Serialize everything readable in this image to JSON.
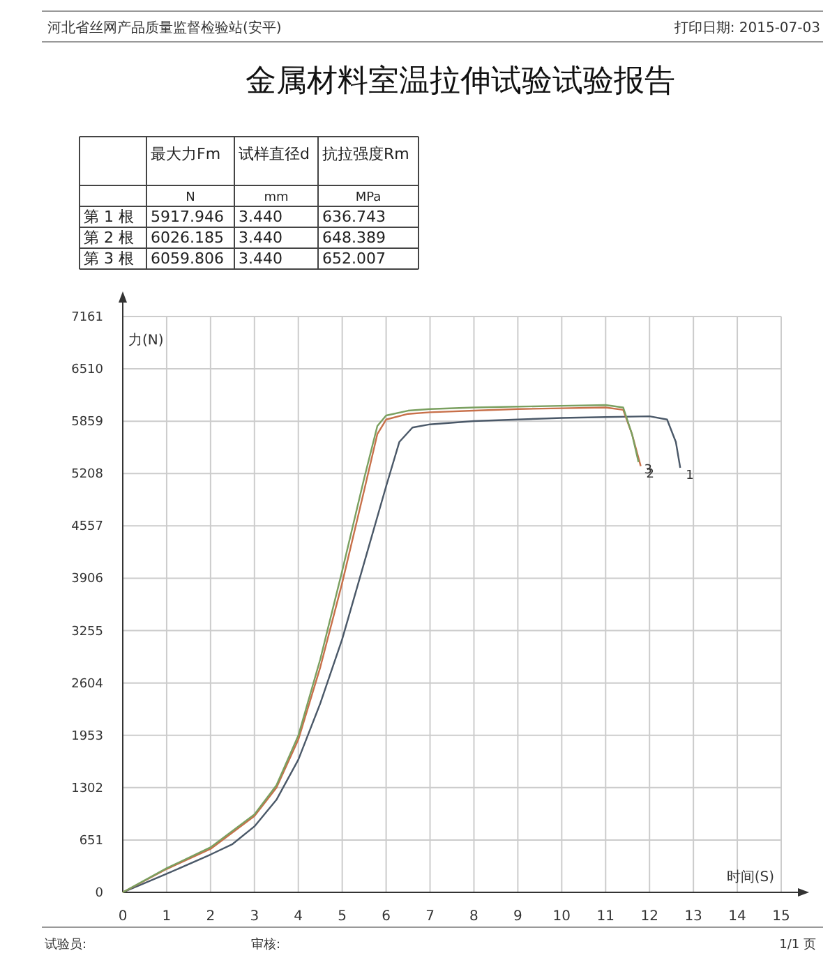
{
  "chart_data": [
    {
      "type": "other",
      "annotations": [
        "河北省丝网产品质量监督检验站(安平)",
        "打印日期: 2015-07-03",
        "最大力Fm",
        "试样直径d",
        "抗拉强度Rm",
        "N",
        "mm",
        "MPa",
        "第 1 根",
        "5917.946",
        "3.440",
        "636.743",
        "第 2 根",
        "6026.185",
        "3.440",
        "648.389",
        "第 3 根",
        "6059.806",
        "3.440",
        "652.007",
        "试验员:",
        "审核:",
        "1/1 页"
      ]
    },
    {
      "type": "line",
      "title": "金属材料室温拉伸试验试验报告",
      "xlabel": "时间(S)",
      "ylabel": "力(N)",
      "xlim": [
        0,
        15
      ],
      "ylim": [
        0,
        7161
      ],
      "xticks": [
        0,
        1,
        2,
        3,
        4,
        5,
        6,
        7,
        8,
        9,
        10,
        11,
        12,
        13,
        14,
        15
      ],
      "yticks": [
        0,
        651,
        1302,
        1953,
        2604,
        3255,
        3906,
        4557,
        5208,
        5859,
        6510,
        7161
      ],
      "grid": true,
      "marker": "none",
      "line_style": "solid",
      "series": [
        {
          "color": "#4a5868",
          "x": [
            0,
            1,
            2,
            2.5,
            3,
            3.5,
            4,
            4.5,
            5,
            5.5,
            6,
            6.3,
            6.6,
            7,
            8,
            9,
            10,
            11,
            12,
            12.4,
            12.6,
            12.7
          ],
          "values": [
            0,
            230,
            470,
            600,
            820,
            1150,
            1650,
            2350,
            3150,
            4100,
            5050,
            5600,
            5780,
            5820,
            5860,
            5880,
            5900,
            5910,
            5920,
            5880,
            5600,
            5280
          ]
        },
        {
          "color": "#c8704a",
          "x": [
            0,
            1,
            2,
            3,
            3.5,
            4,
            4.5,
            5,
            5.5,
            5.8,
            6,
            6.5,
            7,
            8,
            9,
            10,
            11,
            11.4,
            11.6,
            11.8
          ],
          "values": [
            0,
            290,
            540,
            950,
            1300,
            1900,
            2800,
            3850,
            5000,
            5700,
            5880,
            5950,
            5970,
            5990,
            6010,
            6020,
            6030,
            6000,
            5700,
            5300
          ]
        },
        {
          "color": "#7aa060",
          "x": [
            0,
            1,
            2,
            3,
            3.5,
            4,
            4.5,
            5,
            5.5,
            5.8,
            6,
            6.5,
            7,
            8,
            9,
            10,
            11,
            11.4,
            11.6,
            11.75
          ],
          "values": [
            0,
            300,
            560,
            970,
            1330,
            1950,
            2900,
            4000,
            5150,
            5800,
            5930,
            5990,
            6010,
            6030,
            6040,
            6050,
            6060,
            6030,
            5700,
            5350
          ]
        }
      ],
      "annotations": [
        {
          "text": "1",
          "x": 12.7,
          "y": 5280
        },
        {
          "text": "2",
          "x": 11.8,
          "y": 5300
        },
        {
          "text": "3",
          "x": 11.75,
          "y": 5350
        }
      ]
    }
  ]
}
